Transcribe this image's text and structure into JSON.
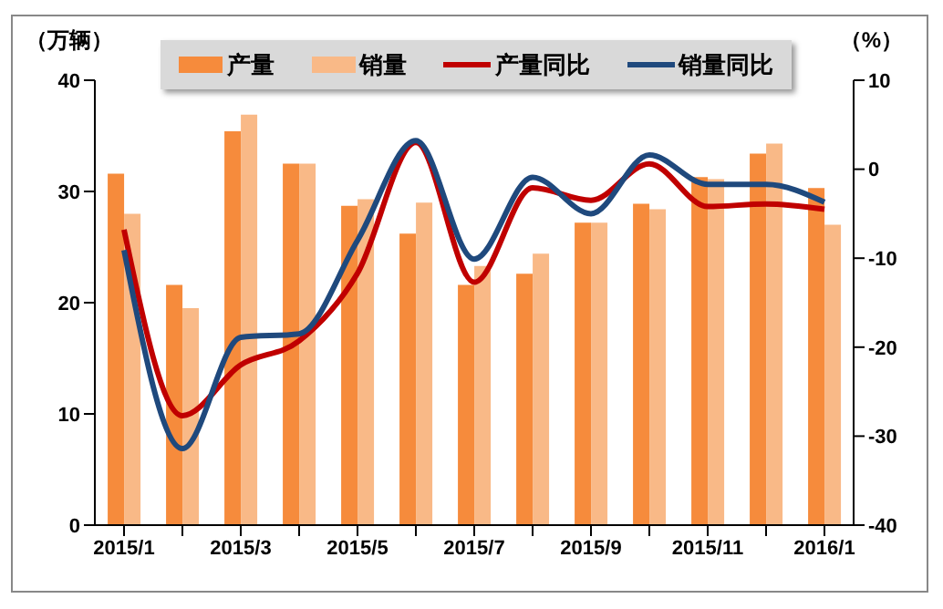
{
  "chart_data": {
    "type": "bar",
    "ylabel": "（万辆）",
    "y2label": "（%）",
    "categories": [
      "2015/1",
      null,
      "2015/3",
      null,
      "2015/5",
      null,
      "2015/7",
      null,
      "2015/9",
      null,
      "2015/11",
      null,
      "2016/1"
    ],
    "series": [
      {
        "name": "产量",
        "color": "#f68b3c",
        "values": [
          31.6,
          21.6,
          35.4,
          32.5,
          28.7,
          26.2,
          21.6,
          22.6,
          27.2,
          28.9,
          31.3,
          33.4,
          30.3
        ]
      },
      {
        "name": "销量",
        "color": "#f9b987",
        "values": [
          28.0,
          19.5,
          36.9,
          32.5,
          29.3,
          29.0,
          23.3,
          24.4,
          27.2,
          28.4,
          31.1,
          34.3,
          27.0
        ]
      },
      {
        "name": "产量同比",
        "type": "line",
        "axis": "y2",
        "color": "#c00000",
        "values": [
          -6.8,
          -27.7,
          -22,
          -19.3,
          -11.7,
          3.0,
          -12.7,
          -2.1,
          -3.5,
          0.6,
          -4.2,
          -3.9,
          -4.5
        ]
      },
      {
        "name": "销量同比",
        "type": "line",
        "axis": "y2",
        "color": "#1f497d",
        "values": [
          -9.1,
          -31.4,
          -18.9,
          -18.5,
          -8.0,
          3.2,
          -10.1,
          -0.9,
          -5.0,
          1.6,
          -1.7,
          -1.7,
          -3.7
        ]
      }
    ],
    "ylim": [
      0,
      40
    ],
    "yticks": [
      0,
      10,
      20,
      30,
      40
    ],
    "y2lim": [
      -40,
      10
    ],
    "y2ticks": [
      -40,
      -30,
      -20,
      -10,
      0,
      10
    ],
    "legend": "top",
    "grid": false,
    "marker": "none",
    "line_style": "solid"
  }
}
